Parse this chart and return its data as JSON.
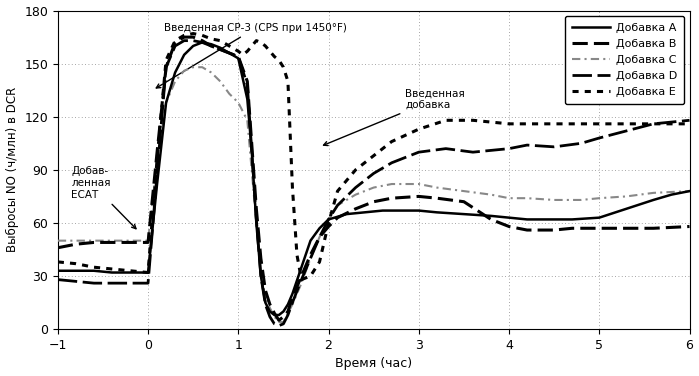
{
  "xlabel": "Время (час)",
  "ylabel": "Выбросы NO (ч/млн) в DCR",
  "xlim": [
    -1,
    6
  ],
  "ylim": [
    0,
    180
  ],
  "xticks": [
    -1,
    0,
    1,
    2,
    3,
    4,
    5,
    6
  ],
  "yticks": [
    0,
    30,
    60,
    90,
    120,
    150,
    180
  ],
  "background": "#ffffff",
  "series": {
    "A": {
      "label": "Добавка A",
      "color": "#000000",
      "lw": 1.8,
      "x": [
        -1.0,
        -0.8,
        -0.6,
        -0.4,
        -0.2,
        -0.05,
        0.0,
        0.1,
        0.2,
        0.3,
        0.4,
        0.5,
        0.6,
        0.7,
        0.8,
        0.9,
        1.0,
        1.1,
        1.15,
        1.2,
        1.25,
        1.3,
        1.35,
        1.4,
        1.45,
        1.5,
        1.55,
        1.6,
        1.7,
        1.8,
        1.9,
        2.0,
        2.2,
        2.4,
        2.6,
        2.8,
        3.0,
        3.2,
        3.5,
        3.8,
        4.0,
        4.2,
        4.5,
        4.7,
        5.0,
        5.3,
        5.6,
        5.8,
        6.0
      ],
      "y": [
        33,
        33,
        33,
        32,
        32,
        32,
        32,
        82,
        128,
        145,
        155,
        160,
        162,
        161,
        159,
        156,
        153,
        130,
        100,
        60,
        30,
        15,
        10,
        8,
        8,
        10,
        14,
        20,
        35,
        50,
        57,
        62,
        65,
        66,
        67,
        67,
        67,
        66,
        65,
        64,
        63,
        62,
        62,
        62,
        63,
        68,
        73,
        76,
        78
      ]
    },
    "B": {
      "label": "Добавка B",
      "color": "#000000",
      "lw": 2.2,
      "x": [
        -1.0,
        -0.8,
        -0.6,
        -0.4,
        -0.2,
        0.0,
        0.1,
        0.2,
        0.3,
        0.4,
        0.5,
        0.6,
        0.7,
        0.8,
        0.9,
        1.0,
        1.1,
        1.2,
        1.25,
        1.3,
        1.35,
        1.4,
        1.45,
        1.5,
        1.55,
        1.6,
        1.7,
        1.8,
        1.9,
        2.0,
        2.1,
        2.3,
        2.5,
        2.7,
        3.0,
        3.2,
        3.5,
        3.8,
        4.0,
        4.2,
        4.5,
        4.7,
        5.0,
        5.3,
        5.6,
        6.0
      ],
      "y": [
        46,
        48,
        49,
        49,
        49,
        49,
        100,
        148,
        162,
        165,
        165,
        163,
        160,
        158,
        156,
        154,
        140,
        68,
        40,
        22,
        14,
        9,
        5,
        7,
        10,
        18,
        30,
        42,
        52,
        58,
        63,
        68,
        72,
        74,
        75,
        74,
        72,
        62,
        58,
        56,
        56,
        57,
        57,
        57,
        57,
        58
      ]
    },
    "C": {
      "label": "Добавка C",
      "color": "#888888",
      "lw": 1.5,
      "x": [
        -1.0,
        -0.8,
        -0.6,
        -0.4,
        -0.2,
        0.0,
        0.1,
        0.2,
        0.3,
        0.4,
        0.5,
        0.6,
        0.7,
        0.8,
        0.9,
        1.0,
        1.1,
        1.2,
        1.25,
        1.3,
        1.35,
        1.4,
        1.45,
        1.5,
        1.6,
        1.7,
        1.8,
        1.9,
        2.0,
        2.1,
        2.3,
        2.5,
        2.7,
        3.0,
        3.2,
        3.5,
        3.8,
        4.0,
        4.2,
        4.5,
        4.8,
        5.0,
        5.3,
        5.6,
        6.0
      ],
      "y": [
        50,
        50,
        50,
        50,
        50,
        50,
        95,
        128,
        140,
        146,
        148,
        148,
        145,
        140,
        133,
        128,
        118,
        60,
        32,
        18,
        12,
        7,
        4,
        4,
        14,
        26,
        40,
        52,
        62,
        70,
        76,
        80,
        82,
        82,
        80,
        78,
        76,
        74,
        74,
        73,
        73,
        74,
        75,
        77,
        78
      ]
    },
    "D": {
      "label": "Добавка D",
      "color": "#000000",
      "lw": 2.0,
      "x": [
        -1.0,
        -0.8,
        -0.6,
        -0.4,
        -0.2,
        0.0,
        0.1,
        0.2,
        0.3,
        0.4,
        0.5,
        0.6,
        0.7,
        0.8,
        0.9,
        1.0,
        1.1,
        1.2,
        1.25,
        1.3,
        1.35,
        1.4,
        1.45,
        1.5,
        1.55,
        1.6,
        1.7,
        1.8,
        1.9,
        2.0,
        2.1,
        2.3,
        2.5,
        2.7,
        3.0,
        3.3,
        3.6,
        4.0,
        4.2,
        4.5,
        4.8,
        5.0,
        5.3,
        5.6,
        6.0
      ],
      "y": [
        28,
        27,
        26,
        26,
        26,
        26,
        88,
        148,
        160,
        163,
        163,
        162,
        160,
        158,
        156,
        154,
        138,
        62,
        30,
        14,
        7,
        3,
        2,
        3,
        8,
        15,
        28,
        40,
        52,
        62,
        70,
        80,
        88,
        94,
        100,
        102,
        100,
        102,
        104,
        103,
        105,
        108,
        112,
        116,
        118
      ]
    },
    "E": {
      "label": "Добавка E",
      "color": "#000000",
      "lw": 2.2,
      "x": [
        -1.0,
        -0.8,
        -0.6,
        -0.4,
        -0.2,
        0.0,
        0.1,
        0.2,
        0.3,
        0.4,
        0.5,
        0.6,
        0.7,
        0.8,
        0.9,
        1.0,
        1.05,
        1.1,
        1.15,
        1.2,
        1.25,
        1.3,
        1.35,
        1.4,
        1.45,
        1.5,
        1.55,
        1.6,
        1.65,
        1.7,
        1.8,
        1.9,
        2.0,
        2.1,
        2.3,
        2.5,
        2.7,
        3.0,
        3.3,
        3.6,
        4.0,
        4.3,
        4.6,
        5.0,
        5.3,
        5.6,
        6.0
      ],
      "y": [
        38,
        37,
        35,
        34,
        33,
        32,
        96,
        152,
        163,
        166,
        167,
        166,
        164,
        163,
        160,
        157,
        155,
        157,
        160,
        163,
        162,
        160,
        157,
        154,
        152,
        148,
        140,
        80,
        42,
        28,
        30,
        38,
        60,
        78,
        90,
        98,
        106,
        113,
        118,
        118,
        116,
        116,
        116,
        116,
        116,
        116,
        116
      ]
    }
  }
}
